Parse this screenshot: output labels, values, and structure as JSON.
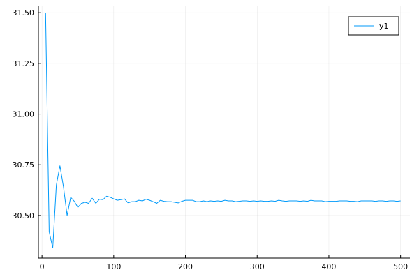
{
  "chart_data": {
    "type": "line",
    "title": "",
    "xlabel": "",
    "ylabel": "",
    "xlim": [
      -5,
      513
    ],
    "ylim": [
      30.29,
      31.535
    ],
    "xticks": [
      0,
      100,
      200,
      300,
      400,
      500
    ],
    "xtick_labels": [
      "0",
      "100",
      "200",
      "300",
      "400",
      "500"
    ],
    "yticks": [
      30.5,
      30.75,
      31.0,
      31.25,
      31.5
    ],
    "ytick_labels": [
      "30.50",
      "30.75",
      "31.00",
      "31.25",
      "31.50"
    ],
    "grid": true,
    "legend": {
      "position": "top-right"
    },
    "series": [
      {
        "name": "y1",
        "color": "#009AFA",
        "x": [
          5,
          10,
          15,
          20,
          25,
          30,
          35,
          40,
          45,
          50,
          55,
          60,
          65,
          70,
          75,
          80,
          85,
          90,
          95,
          100,
          105,
          110,
          115,
          120,
          125,
          130,
          135,
          140,
          145,
          150,
          155,
          160,
          165,
          170,
          175,
          180,
          185,
          190,
          195,
          200,
          205,
          210,
          215,
          220,
          225,
          230,
          235,
          240,
          245,
          250,
          255,
          260,
          265,
          270,
          275,
          280,
          285,
          290,
          295,
          300,
          305,
          310,
          315,
          320,
          325,
          330,
          335,
          340,
          345,
          350,
          355,
          360,
          365,
          370,
          375,
          380,
          385,
          390,
          395,
          400,
          405,
          410,
          415,
          420,
          425,
          430,
          435,
          440,
          445,
          450,
          455,
          460,
          465,
          470,
          475,
          480,
          485,
          490,
          495,
          500
        ],
        "y": [
          31.5,
          30.42,
          30.34,
          30.65,
          30.745,
          30.64,
          30.5,
          30.59,
          30.57,
          30.54,
          30.56,
          30.565,
          30.56,
          30.585,
          30.56,
          30.58,
          30.578,
          30.595,
          30.59,
          30.582,
          30.575,
          30.578,
          30.582,
          30.562,
          30.568,
          30.568,
          30.575,
          30.572,
          30.58,
          30.575,
          30.568,
          30.56,
          30.575,
          30.57,
          30.568,
          30.568,
          30.565,
          30.562,
          30.57,
          30.575,
          30.575,
          30.575,
          30.568,
          30.568,
          30.572,
          30.568,
          30.572,
          30.57,
          30.572,
          30.57,
          30.575,
          30.572,
          30.572,
          30.568,
          30.57,
          30.572,
          30.572,
          30.57,
          30.572,
          30.57,
          30.572,
          30.57,
          30.57,
          30.572,
          30.57,
          30.575,
          30.572,
          30.57,
          30.572,
          30.572,
          30.572,
          30.57,
          30.572,
          30.57,
          30.575,
          30.572,
          30.572,
          30.572,
          30.568,
          30.57,
          30.57,
          30.57,
          30.572,
          30.572,
          30.572,
          30.57,
          30.57,
          30.568,
          30.572,
          30.572,
          30.572,
          30.572,
          30.57,
          30.572,
          30.572,
          30.57,
          30.572,
          30.572,
          30.57,
          30.572
        ]
      }
    ]
  }
}
